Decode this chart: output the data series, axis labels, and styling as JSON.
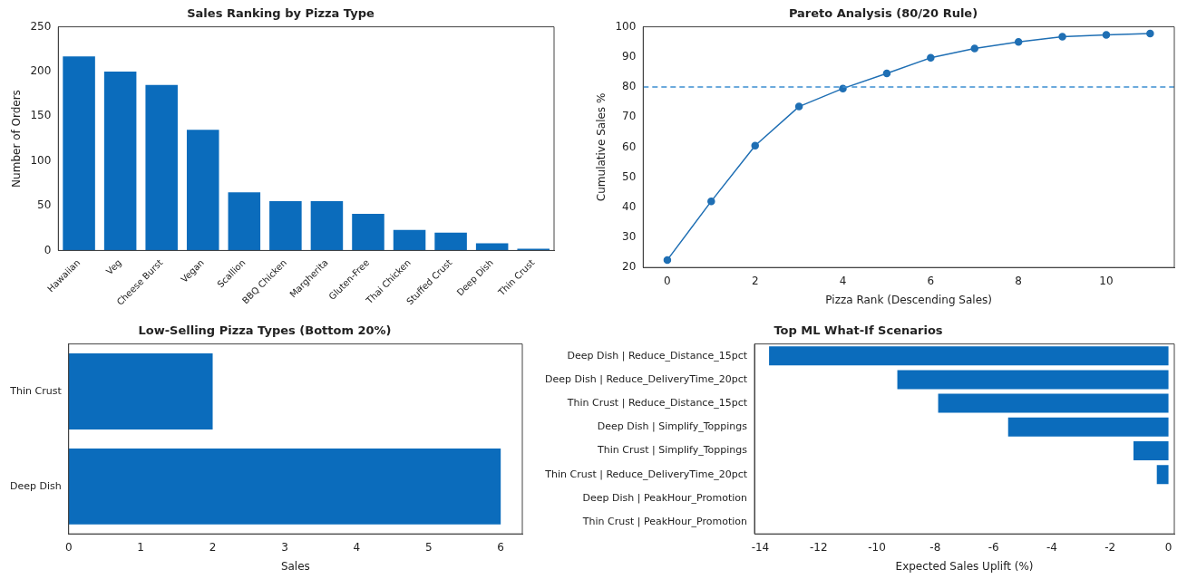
{
  "chart_data": [
    {
      "type": "bar",
      "title": "Sales Ranking by Pizza Type",
      "ylabel": "Number of Orders",
      "categories": [
        "Hawaiian",
        "Veg",
        "Cheese Burst",
        "Vegan",
        "Scallion",
        "BBQ Chicken",
        "Margherita",
        "Gluten-Free",
        "Thai Chicken",
        "Stuffed Crust",
        "Deep Dish",
        "Thin Crust"
      ],
      "values": [
        217,
        200,
        185,
        135,
        65,
        55,
        55,
        41,
        23,
        20,
        8,
        2
      ],
      "color": "#0b6cbc",
      "ylim": [
        0,
        250
      ],
      "yticks": [
        0,
        50,
        100,
        150,
        200,
        250
      ],
      "grid": false
    },
    {
      "type": "line",
      "title": "Pareto Analysis (80/20 Rule)",
      "xlabel": "Pizza Rank (Descending Sales)",
      "ylabel": "Cumulative Sales %",
      "x": [
        0,
        1,
        2,
        3,
        4,
        5,
        6,
        7,
        8,
        9,
        10,
        11
      ],
      "values": [
        22.5,
        42,
        60.5,
        73.5,
        79.5,
        84.5,
        89.7,
        92.8,
        95,
        96.7,
        97.3,
        97.8
      ],
      "color": "#1f6fb4",
      "marker": "circle",
      "line_style": "solid",
      "xlim": [
        -0.55,
        11.55
      ],
      "xticks": [
        0,
        2,
        4,
        6,
        8,
        10
      ],
      "ylim": [
        20,
        100
      ],
      "yticks": [
        20,
        30,
        40,
        50,
        60,
        70,
        80,
        90,
        100
      ],
      "ref_lines": [
        {
          "axis": "y",
          "value": 80,
          "color": "#3d8fd1",
          "line_style": "dashed"
        }
      ],
      "grid": false
    },
    {
      "type": "bar",
      "orientation": "horizontal",
      "title": "Low-Selling Pizza Types (Bottom 20%)",
      "xlabel": "Sales",
      "categories": [
        "Thin Crust",
        "Deep Dish"
      ],
      "values": [
        2,
        6
      ],
      "color": "#0b6cbc",
      "xlim": [
        0,
        6.3
      ],
      "xticks": [
        0,
        1,
        2,
        3,
        4,
        5,
        6
      ],
      "grid": false
    },
    {
      "type": "bar",
      "orientation": "horizontal",
      "title": "Top ML What-If Scenarios",
      "xlabel": "Expected Sales Uplift (%)",
      "categories": [
        "Deep Dish | Reduce_Distance_15pct",
        "Deep Dish | Reduce_DeliveryTime_20pct",
        "Thin Crust | Reduce_Distance_15pct",
        "Deep Dish | Simplify_Toppings",
        "Thin Crust | Simplify_Toppings",
        "Thin Crust | Reduce_DeliveryTime_20pct",
        "Deep Dish | PeakHour_Promotion",
        "Thin Crust | PeakHour_Promotion"
      ],
      "values": [
        -13.7,
        -9.3,
        -7.9,
        -5.5,
        -1.2,
        -0.4,
        0,
        0
      ],
      "color": "#0b6cbc",
      "xlim": [
        -14.2,
        0.2
      ],
      "xticks": [
        -14,
        -12,
        -10,
        -8,
        -6,
        -4,
        -2,
        0
      ],
      "grid": false
    }
  ]
}
